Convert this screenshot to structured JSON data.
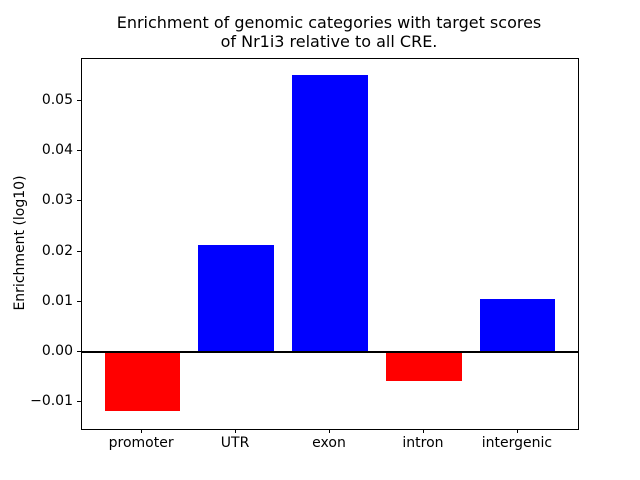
{
  "chart_data": {
    "type": "bar",
    "title": "Enrichment of genomic categories with target scores\nof Nr1i3 relative to all CRE.",
    "xlabel": "",
    "ylabel": "Enrichment (log10)",
    "categories": [
      "promoter",
      "UTR",
      "exon",
      "intron",
      "intergenic"
    ],
    "values": [
      -0.0117,
      0.0214,
      0.0551,
      -0.0058,
      0.0105
    ],
    "bar_colors": [
      "#ff0000",
      "#0000ff",
      "#0000ff",
      "#ff0000",
      "#0000ff"
    ],
    "positive_color": "#0000ff",
    "negative_color": "#ff0000",
    "ylim": [
      -0.0153,
      0.0583
    ],
    "xlim": [
      -0.64,
      4.64
    ],
    "bar_width_units": 0.8,
    "yticks": [
      -0.01,
      0.0,
      0.01,
      0.02,
      0.03,
      0.04,
      0.05
    ],
    "ytick_labels": [
      "−0.01",
      "0.00",
      "0.01",
      "0.02",
      "0.03",
      "0.04",
      "0.05"
    ],
    "zero_line": true,
    "grid": false,
    "legend": false,
    "axis_color": "#000000",
    "background_color": "#ffffff"
  }
}
